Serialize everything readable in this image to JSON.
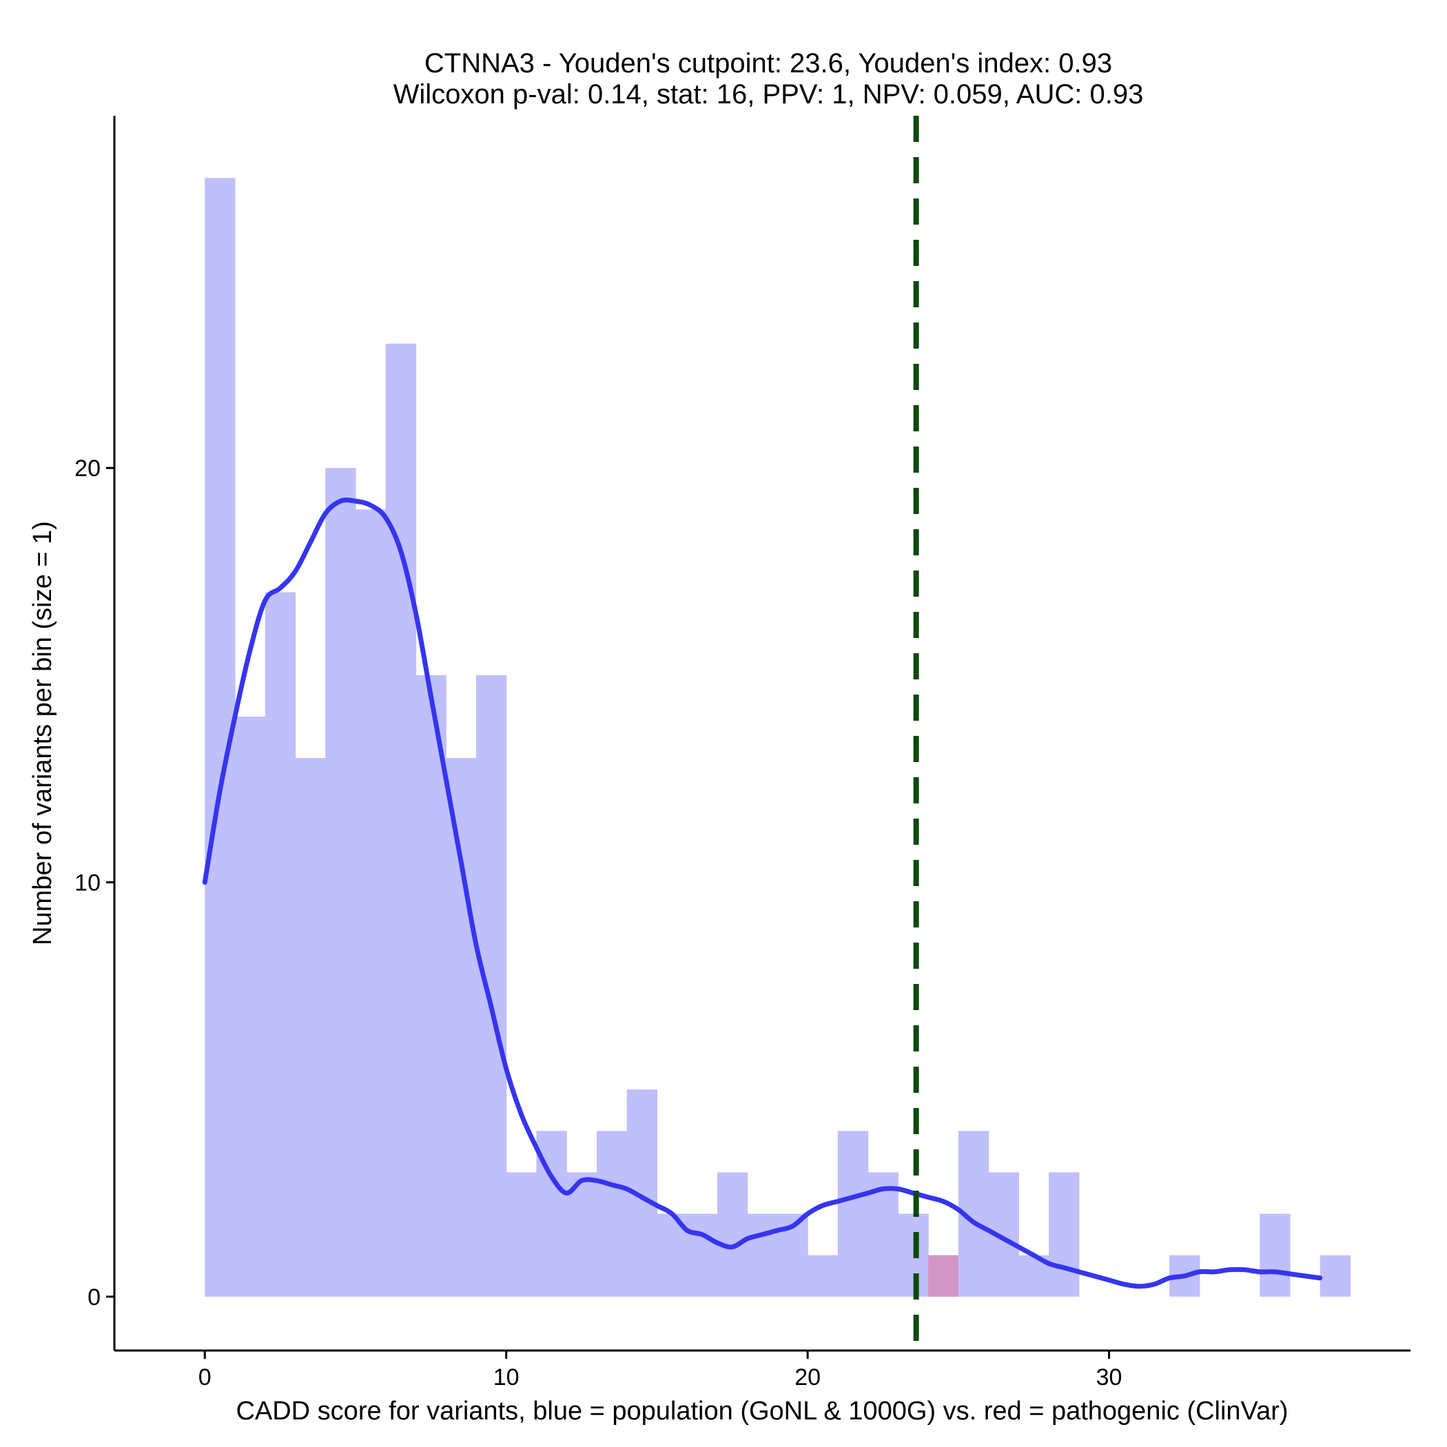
{
  "chart_data": {
    "type": "histogram",
    "title_line1": "CTNNA3 - Youden's cutpoint: 23.6, Youden's index: 0.93",
    "title_line2": "Wilcoxon p-val: 0.14, stat: 16, PPV: 1, NPV: 0.059, AUC: 0.93",
    "xlabel": "CADD score for variants, blue = population (GoNL & 1000G) vs. red = pathogenic (ClinVar)",
    "ylabel": "Number of variants per bin (size = 1)",
    "xlim": [
      -3,
      40
    ],
    "ylim": [
      -1.3,
      28.5
    ],
    "xticks": [
      0,
      10,
      20,
      30
    ],
    "yticks": [
      0,
      10,
      20
    ],
    "bin_width": 1,
    "colors": {
      "population": "#bfbffc",
      "pathogenic": "#d296c4",
      "density": "#3535f0",
      "cutpoint": "#0a4a0a"
    },
    "population_bins": [
      {
        "x0": 0,
        "count": 27
      },
      {
        "x0": 1,
        "count": 14
      },
      {
        "x0": 2,
        "count": 17
      },
      {
        "x0": 3,
        "count": 13
      },
      {
        "x0": 4,
        "count": 20
      },
      {
        "x0": 5,
        "count": 19
      },
      {
        "x0": 6,
        "count": 23
      },
      {
        "x0": 7,
        "count": 15
      },
      {
        "x0": 8,
        "count": 13
      },
      {
        "x0": 9,
        "count": 15
      },
      {
        "x0": 10,
        "count": 3
      },
      {
        "x0": 11,
        "count": 4
      },
      {
        "x0": 12,
        "count": 3
      },
      {
        "x0": 13,
        "count": 4
      },
      {
        "x0": 14,
        "count": 5
      },
      {
        "x0": 15,
        "count": 2
      },
      {
        "x0": 16,
        "count": 2
      },
      {
        "x0": 17,
        "count": 3
      },
      {
        "x0": 18,
        "count": 2
      },
      {
        "x0": 19,
        "count": 2
      },
      {
        "x0": 20,
        "count": 1
      },
      {
        "x0": 21,
        "count": 4
      },
      {
        "x0": 22,
        "count": 3
      },
      {
        "x0": 23,
        "count": 2
      },
      {
        "x0": 24,
        "count": 1
      },
      {
        "x0": 25,
        "count": 4
      },
      {
        "x0": 26,
        "count": 3
      },
      {
        "x0": 27,
        "count": 1
      },
      {
        "x0": 28,
        "count": 3
      },
      {
        "x0": 32,
        "count": 1
      },
      {
        "x0": 35,
        "count": 2
      },
      {
        "x0": 37,
        "count": 1
      }
    ],
    "pathogenic_bins": [
      {
        "x0": 24,
        "count": 1
      }
    ],
    "density_curve": {
      "x": [
        0,
        0.5,
        1,
        1.5,
        2,
        2.5,
        3,
        3.5,
        4,
        4.5,
        5,
        5.5,
        6,
        6.5,
        7,
        7.5,
        8,
        8.5,
        9,
        9.5,
        10,
        10.5,
        11,
        11.5,
        12,
        12.5,
        13,
        13.5,
        14,
        14.5,
        15,
        15.5,
        16,
        16.5,
        17,
        17.5,
        18,
        18.5,
        19,
        19.5,
        20,
        20.5,
        21,
        21.5,
        22,
        22.5,
        23,
        23.5,
        24,
        24.5,
        25,
        25.5,
        26,
        26.5,
        27,
        27.5,
        28,
        28.5,
        29,
        29.5,
        30,
        30.5,
        31,
        31.5,
        32,
        32.5,
        33,
        33.5,
        34,
        34.5,
        35,
        35.5,
        36,
        36.5,
        37
      ],
      "y": [
        10,
        12.2,
        14,
        15.6,
        16.8,
        17.1,
        17.5,
        18.2,
        18.9,
        19.2,
        19.2,
        19.1,
        18.8,
        18,
        16.5,
        14.5,
        12.5,
        10.5,
        8.5,
        7,
        5.5,
        4.4,
        3.6,
        2.9,
        2.5,
        2.8,
        2.8,
        2.7,
        2.6,
        2.4,
        2.2,
        2,
        1.6,
        1.5,
        1.3,
        1.2,
        1.4,
        1.5,
        1.6,
        1.7,
        2,
        2.2,
        2.3,
        2.4,
        2.5,
        2.6,
        2.6,
        2.5,
        2.4,
        2.3,
        2.1,
        1.8,
        1.6,
        1.4,
        1.2,
        1,
        0.8,
        0.7,
        0.6,
        0.5,
        0.4,
        0.3,
        0.25,
        0.3,
        0.45,
        0.5,
        0.6,
        0.6,
        0.65,
        0.65,
        0.6,
        0.6,
        0.55,
        0.5,
        0.45
      ]
    },
    "cutpoint": 23.6
  }
}
